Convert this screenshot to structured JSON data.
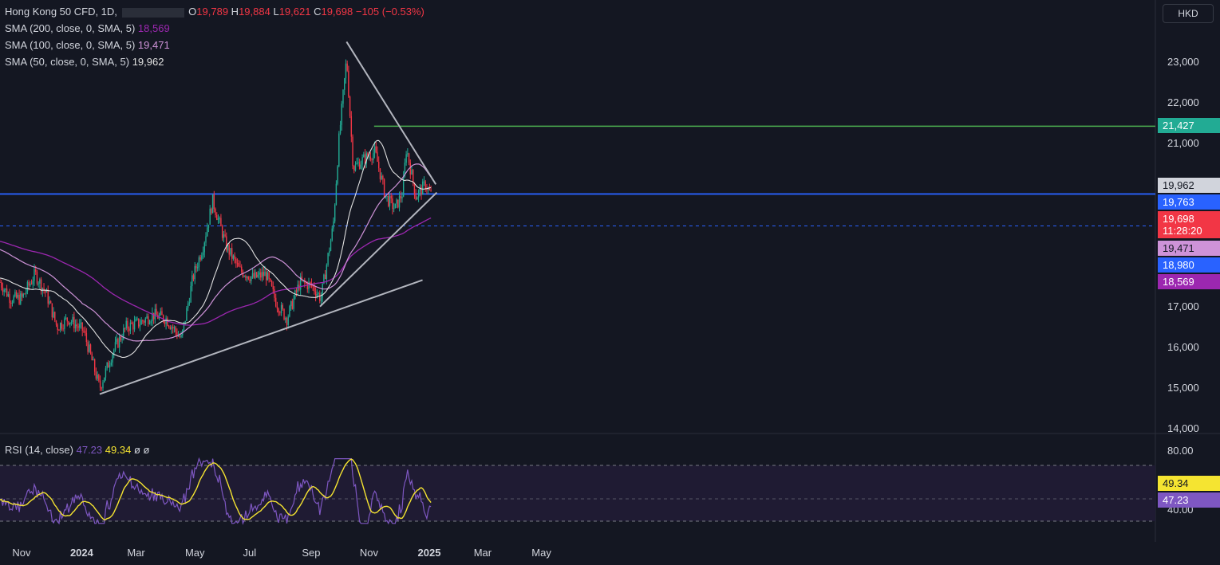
{
  "header": {
    "symbol": "Hong Kong 50 CFD, 1D,",
    "open_k": "O",
    "open_v": "19,789",
    "high_k": "H",
    "high_v": "19,884",
    "low_k": "L",
    "low_v": "19,621",
    "close_k": "C",
    "close_v": "19,698",
    "change": "−105 (−0.53%)"
  },
  "indicators": [
    {
      "label": "SMA (200, close, 0, SMA, 5)",
      "value": "18,569",
      "color": "#9c27b0"
    },
    {
      "label": "SMA (100, close, 0, SMA, 5)",
      "value": "19,471",
      "color": "#ce93d8"
    },
    {
      "label": "SMA (50, close, 0, SMA, 5)",
      "value": "19,962",
      "color": "#e0e0e0"
    }
  ],
  "currency": "HKD",
  "price_badges": [
    {
      "text": "21,427",
      "bg": "#22ab94",
      "fg": "#ffffff",
      "price": 21427
    },
    {
      "text": "19,962",
      "bg": "#d1d4dc",
      "fg": "#131722",
      "price": 19962
    },
    {
      "text": "19,763",
      "bg": "#2962ff",
      "fg": "#ffffff",
      "price": 19763
    },
    {
      "text": "19,698",
      "bg": "#f23645",
      "fg": "#ffffff",
      "price": 19698,
      "sub": "11:28:20"
    },
    {
      "text": "19,471",
      "bg": "#ce93d8",
      "fg": "#131722",
      "price": 19471
    },
    {
      "text": "18,980",
      "bg": "#2962ff",
      "fg": "#ffffff",
      "price": 18980
    },
    {
      "text": "18,569",
      "bg": "#9c27b0",
      "fg": "#ffffff",
      "price": 18569
    }
  ],
  "y_ticks": [
    "23,000",
    "22,000",
    "21,000",
    "17,000",
    "16,000",
    "15,000",
    "14,000"
  ],
  "y_tick_values": [
    23000,
    22000,
    21000,
    17000,
    16000,
    15000,
    14000
  ],
  "x_ticks": [
    "Nov",
    "2024",
    "Mar",
    "May",
    "Jul",
    "Sep",
    "Nov",
    "2025",
    "Mar",
    "May"
  ],
  "rsi": {
    "label": "RSI (14, close)",
    "rsi_value": "47.23",
    "ma_value": "49.34",
    "extra1": "ø",
    "extra2": "ø",
    "ticks": [
      "80.00",
      "40.00"
    ],
    "rsi_color": "#7e57c2",
    "ma_color": "#f5e431"
  },
  "chart_data": {
    "type": "candlestick",
    "ylim": [
      14000,
      24000
    ],
    "x_range": [
      "2023-10-09",
      "2025-06-10"
    ],
    "close_series": [
      [
        "2023-10-09",
        17600
      ],
      [
        "2023-10-20",
        17200
      ],
      [
        "2023-11-01",
        17200
      ],
      [
        "2023-11-15",
        17800
      ],
      [
        "2023-11-27",
        17300
      ],
      [
        "2023-12-08",
        16500
      ],
      [
        "2023-12-20",
        16700
      ],
      [
        "2024-01-05",
        16400
      ],
      [
        "2024-01-22",
        15000
      ],
      [
        "2024-02-05",
        15900
      ],
      [
        "2024-02-19",
        16500
      ],
      [
        "2024-03-04",
        16600
      ],
      [
        "2024-03-18",
        16800
      ],
      [
        "2024-04-01",
        16700
      ],
      [
        "2024-04-17",
        16200
      ],
      [
        "2024-04-29",
        17700
      ],
      [
        "2024-05-10",
        18500
      ],
      [
        "2024-05-20",
        19600
      ],
      [
        "2024-06-03",
        18500
      ],
      [
        "2024-06-17",
        17900
      ],
      [
        "2024-07-02",
        17700
      ],
      [
        "2024-07-15",
        17800
      ],
      [
        "2024-07-26",
        17100
      ],
      [
        "2024-08-06",
        16700
      ],
      [
        "2024-08-20",
        17600
      ],
      [
        "2024-09-02",
        17500
      ],
      [
        "2024-09-11",
        17200
      ],
      [
        "2024-09-24",
        19000
      ],
      [
        "2024-09-30",
        21100
      ],
      [
        "2024-10-08",
        23100
      ],
      [
        "2024-10-15",
        20400
      ],
      [
        "2024-10-25",
        20600
      ],
      [
        "2024-11-07",
        20800
      ],
      [
        "2024-11-18",
        19700
      ],
      [
        "2024-11-28",
        19400
      ],
      [
        "2024-12-06",
        19800
      ],
      [
        "2024-12-10",
        20900
      ],
      [
        "2024-12-20",
        19700
      ],
      [
        "2024-12-30",
        20000
      ],
      [
        "2025-01-06",
        19698
      ]
    ],
    "lines": [
      {
        "name": "SMA 200",
        "color": "#9c27b0"
      },
      {
        "name": "SMA 100",
        "color": "#ce93d8"
      },
      {
        "name": "SMA 50",
        "color": "#e0e0e0"
      }
    ],
    "horizontal_levels": [
      21427,
      19763,
      18980
    ],
    "trendlines": [
      {
        "from": [
          "2024-01-22",
          14850
        ],
        "to": [
          "2024-12-27",
          17650
        ]
      },
      {
        "from": [
          "2024-09-10",
          17000
        ],
        "to": [
          "2025-01-11",
          19800
        ]
      },
      {
        "from": [
          "2024-10-08",
          23500
        ],
        "to": [
          "2025-01-10",
          20000
        ]
      }
    ]
  }
}
